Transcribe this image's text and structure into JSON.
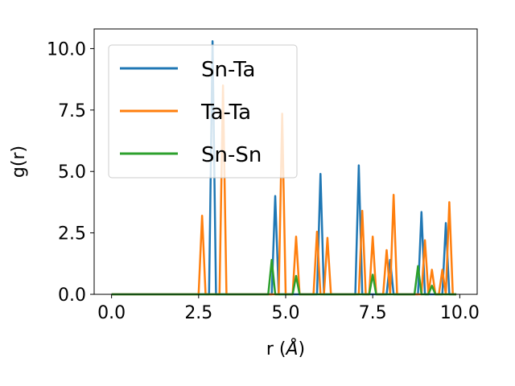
{
  "chart_data": {
    "type": "line",
    "xlabel_prefix": "r (",
    "xlabel_symbol": "Å",
    "xlabel_suffix": ")",
    "ylabel": "g(r)",
    "xlim": [
      -0.5,
      10.5
    ],
    "ylim": [
      0,
      10.8
    ],
    "xticks": [
      0.0,
      2.5,
      5.0,
      7.5,
      10.0
    ],
    "xtick_labels": [
      "0.0",
      "2.5",
      "5.0",
      "7.5",
      "10.0"
    ],
    "yticks": [
      0.0,
      2.5,
      5.0,
      7.5,
      10.0
    ],
    "ytick_labels": [
      "0.0",
      "2.5",
      "5.0",
      "7.5",
      "10.0"
    ],
    "grid": false,
    "legend_position": "upper-left",
    "series": [
      {
        "name": "Sn-Ta",
        "color": "#1f77b4",
        "x": [
          0.0,
          2.8,
          2.9,
          3.0,
          4.5,
          4.6,
          4.7,
          4.8,
          5.8,
          5.9,
          6.0,
          6.1,
          7.0,
          7.1,
          7.2,
          7.8,
          7.9,
          8.0,
          8.1,
          8.8,
          8.9,
          9.0,
          9.5,
          9.6,
          9.7,
          9.9
        ],
        "y": [
          0.0,
          0.0,
          10.3,
          0.0,
          0.0,
          0.0,
          4.0,
          0.0,
          0.0,
          0.0,
          4.9,
          0.0,
          0.0,
          5.25,
          0.0,
          0.0,
          0.0,
          1.4,
          0.0,
          0.0,
          3.35,
          0.0,
          0.0,
          2.9,
          0.0,
          0.0
        ]
      },
      {
        "name": "Ta-Ta",
        "color": "#ff7f0e",
        "x": [
          0.0,
          2.5,
          2.6,
          2.7,
          3.1,
          3.2,
          3.3,
          4.8,
          4.9,
          5.0,
          5.2,
          5.3,
          5.4,
          5.8,
          5.9,
          6.0,
          6.1,
          6.2,
          6.3,
          7.1,
          7.2,
          7.3,
          7.4,
          7.5,
          7.6,
          7.8,
          7.9,
          8.0,
          8.1,
          8.2,
          8.9,
          9.0,
          9.1,
          9.2,
          9.3,
          9.4,
          9.5,
          9.6,
          9.7,
          9.8,
          9.9
        ],
        "y": [
          0.0,
          0.0,
          3.2,
          0.0,
          0.0,
          8.5,
          0.0,
          0.0,
          7.35,
          0.0,
          0.0,
          2.35,
          0.0,
          0.0,
          2.55,
          0.0,
          0.0,
          2.3,
          0.0,
          0.0,
          3.4,
          0.0,
          0.0,
          2.35,
          0.0,
          0.0,
          1.8,
          0.0,
          4.05,
          0.0,
          0.0,
          2.2,
          0.0,
          1.0,
          0.0,
          0.0,
          1.0,
          0.0,
          3.75,
          0.0,
          0.0
        ]
      },
      {
        "name": "Sn-Sn",
        "color": "#2ca02c",
        "x": [
          0.0,
          4.5,
          4.6,
          4.7,
          5.2,
          5.3,
          5.4,
          7.4,
          7.5,
          7.6,
          8.7,
          8.8,
          8.9,
          9.1,
          9.2,
          9.3,
          9.9
        ],
        "y": [
          0.0,
          0.0,
          1.4,
          0.0,
          0.0,
          0.75,
          0.0,
          0.0,
          0.8,
          0.0,
          0.0,
          1.15,
          0.0,
          0.0,
          0.35,
          0.0,
          0.0
        ]
      }
    ]
  }
}
